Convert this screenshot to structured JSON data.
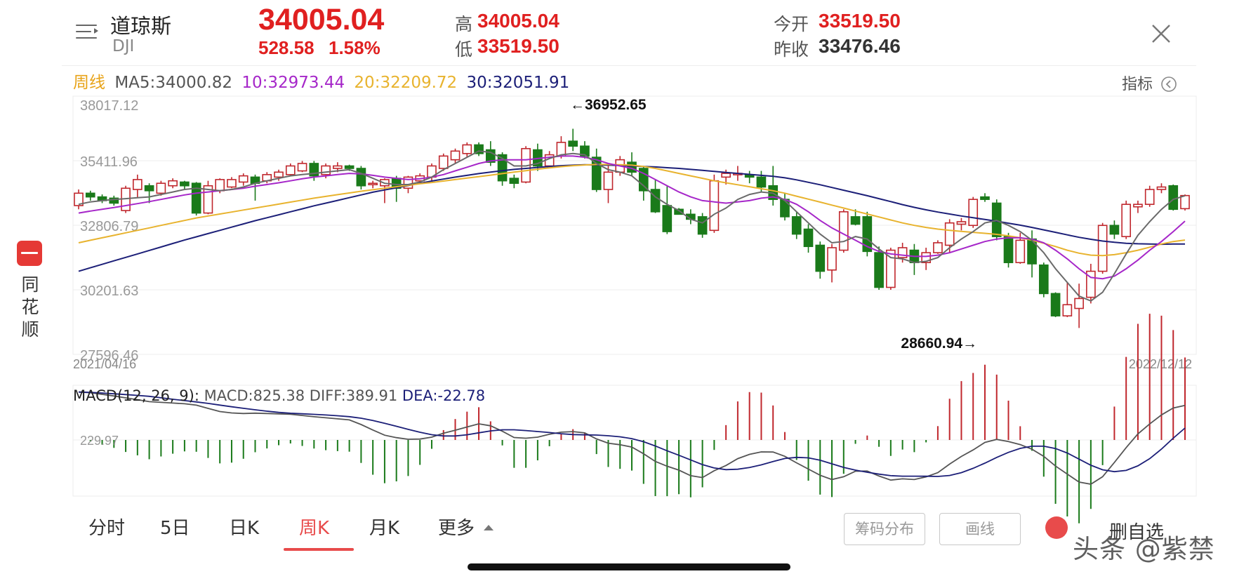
{
  "header": {
    "name": "道琼斯",
    "code": "DJI",
    "price": "34005.04",
    "change": "528.58",
    "change_pct": "1.58%",
    "high_label": "高",
    "high": "34005.04",
    "low_label": "低",
    "low": "33519.50",
    "open_label": "今开",
    "open": "33519.50",
    "prev_label": "昨收",
    "prev": "33476.46"
  },
  "ma_legend": {
    "period": "周线",
    "ma5": "MA5:34000.82",
    "ma10": "10:32973.44",
    "ma20": "20:32209.72",
    "ma30": "30:32051.91",
    "indicator": "指标"
  },
  "side_brand": {
    "l1": "同",
    "l2": "花",
    "l3": "顺"
  },
  "colors": {
    "up": "#c0272d",
    "down": "#1a7a1a",
    "ma5": "#6a6a6a",
    "ma10": "#a627c9",
    "ma20": "#e8b32e",
    "ma30": "#1c1f78",
    "accent": "#e84b4b"
  },
  "tabs": [
    "分时",
    "5日",
    "日K",
    "周K",
    "月K",
    "更多"
  ],
  "active_tab": "周K",
  "buttons": {
    "chip": "筹码分布",
    "draw": "画线",
    "fav": "删自选"
  },
  "watermark": "头条 @紫禁",
  "chart_data": {
    "type": "candlestick",
    "y_ticks": [
      "38017.12",
      "35411.96",
      "32806.79",
      "30201.63",
      "27596.46"
    ],
    "ylim": [
      27596.46,
      38017.12
    ],
    "x_start": "2021/04/16",
    "x_end": "2022/12/12",
    "max_annotation": "←36952.65",
    "min_annotation": "28660.94→",
    "candles": [
      [
        33600,
        34100,
        33450,
        34250
      ],
      [
        34100,
        33950,
        33800,
        34200
      ],
      [
        33950,
        33800,
        33700,
        34050
      ],
      [
        33900,
        33700,
        33600,
        34000
      ],
      [
        33400,
        34300,
        33300,
        34400
      ],
      [
        34250,
        34650,
        33900,
        34850
      ],
      [
        34400,
        34200,
        33700,
        34500
      ],
      [
        34100,
        34500,
        34000,
        34600
      ],
      [
        34400,
        34600,
        34300,
        34700
      ],
      [
        34550,
        34400,
        34250,
        34600
      ],
      [
        34500,
        33300,
        33200,
        34550
      ],
      [
        33300,
        34400,
        33250,
        34600
      ],
      [
        34200,
        34650,
        34100,
        34700
      ],
      [
        34350,
        34650,
        34300,
        34750
      ],
      [
        34550,
        34800,
        34400,
        34900
      ],
      [
        34750,
        34500,
        33800,
        34850
      ],
      [
        34600,
        34850,
        34500,
        34950
      ],
      [
        34750,
        34950,
        34600,
        35050
      ],
      [
        34850,
        35200,
        34800,
        35300
      ],
      [
        35000,
        35300,
        34950,
        35400
      ],
      [
        35300,
        34800,
        34600,
        35400
      ],
      [
        34850,
        35200,
        34700,
        35300
      ],
      [
        35100,
        35200,
        34950,
        35350
      ],
      [
        35200,
        35100,
        35000,
        35250
      ],
      [
        35100,
        34400,
        34250,
        35200
      ],
      [
        34450,
        34500,
        34300,
        34600
      ],
      [
        34400,
        34650,
        33700,
        34700
      ],
      [
        34700,
        34300,
        33750,
        34800
      ],
      [
        34300,
        34750,
        34100,
        34800
      ],
      [
        34600,
        34800,
        34500,
        34900
      ],
      [
        34750,
        35200,
        34600,
        35300
      ],
      [
        35100,
        35600,
        35000,
        35700
      ],
      [
        35450,
        35800,
        35300,
        35900
      ],
      [
        35700,
        36050,
        35550,
        36150
      ],
      [
        36050,
        35700,
        35600,
        36150
      ],
      [
        35850,
        35350,
        35200,
        36200
      ],
      [
        35650,
        34600,
        34400,
        35750
      ],
      [
        34700,
        34500,
        34300,
        34850
      ],
      [
        34550,
        35900,
        34500,
        36000
      ],
      [
        35850,
        35200,
        35000,
        36100
      ],
      [
        35200,
        35650,
        35150,
        35800
      ],
      [
        35600,
        36150,
        35500,
        36400
      ],
      [
        36200,
        36000,
        35800,
        36700
      ],
      [
        36000,
        35600,
        35500,
        36200
      ],
      [
        35550,
        34250,
        34150,
        35900
      ],
      [
        34250,
        34950,
        33700,
        35200
      ],
      [
        34950,
        35450,
        34800,
        35600
      ],
      [
        35350,
        34950,
        34800,
        35750
      ],
      [
        35100,
        34200,
        33800,
        35200
      ],
      [
        34250,
        33350,
        33300,
        34650
      ],
      [
        33600,
        32550,
        32450,
        34400
      ],
      [
        33450,
        33250,
        33250,
        33500
      ],
      [
        33250,
        33050,
        32850,
        33450
      ],
      [
        33150,
        32450,
        32300,
        33300
      ],
      [
        32600,
        34600,
        32500,
        34850
      ],
      [
        34750,
        34900,
        34450,
        35050
      ],
      [
        34900,
        34900,
        34600,
        35200
      ],
      [
        34850,
        34750,
        34500,
        35000
      ],
      [
        34750,
        34350,
        34150,
        35000
      ],
      [
        34400,
        33850,
        33600,
        35200
      ],
      [
        33850,
        33150,
        33000,
        34100
      ],
      [
        33150,
        32450,
        32250,
        33350
      ],
      [
        32650,
        31950,
        31700,
        32850
      ],
      [
        32000,
        30950,
        30650,
        32150
      ],
      [
        31000,
        31900,
        30500,
        32050
      ],
      [
        31800,
        33350,
        31700,
        33450
      ],
      [
        33150,
        32850,
        32800,
        33450
      ],
      [
        33150,
        31750,
        31550,
        33350
      ],
      [
        31700,
        30300,
        30200,
        31950
      ],
      [
        30300,
        31800,
        30200,
        31900
      ],
      [
        31500,
        31900,
        31300,
        32100
      ],
      [
        31800,
        31300,
        30800,
        32050
      ],
      [
        31300,
        31700,
        31000,
        31900
      ],
      [
        31700,
        32100,
        31650,
        32200
      ],
      [
        32000,
        32900,
        31700,
        33050
      ],
      [
        32850,
        32950,
        32600,
        33100
      ],
      [
        32800,
        33850,
        32700,
        33950
      ],
      [
        33950,
        33850,
        33750,
        34100
      ],
      [
        33700,
        32350,
        32200,
        33850
      ],
      [
        32350,
        31300,
        31100,
        32500
      ],
      [
        31300,
        32200,
        31250,
        32500
      ],
      [
        32250,
        31250,
        30700,
        32600
      ],
      [
        31200,
        30050,
        29900,
        31300
      ],
      [
        30050,
        29150,
        29100,
        30100
      ],
      [
        29150,
        29600,
        29100,
        30500
      ],
      [
        29450,
        29850,
        28661,
        30450
      ],
      [
        29900,
        30950,
        29650,
        31250
      ],
      [
        30950,
        32800,
        30850,
        32900
      ],
      [
        32800,
        32450,
        32250,
        33000
      ],
      [
        32350,
        33650,
        32250,
        33800
      ],
      [
        33550,
        33650,
        33300,
        33800
      ],
      [
        33650,
        34250,
        33550,
        34400
      ],
      [
        34250,
        34350,
        34100,
        34500
      ],
      [
        34400,
        33450,
        33400,
        34450
      ],
      [
        33476,
        34005,
        33400,
        34050
      ]
    ],
    "ma5": [
      33650,
      33750,
      33800,
      33850,
      33880,
      33920,
      33950,
      34050,
      34150,
      34250,
      34300,
      34250,
      34200,
      34250,
      34350,
      34500,
      34600,
      34700,
      34800,
      34850,
      34900,
      34950,
      35000,
      35050,
      34900,
      34700,
      34500,
      34450,
      34450,
      34550,
      34750,
      35050,
      35300,
      35550,
      35800,
      35750,
      35500,
      35200,
      35200,
      35300,
      35500,
      35650,
      35700,
      35650,
      35300,
      35050,
      34950,
      34800,
      34400,
      33950,
      33650,
      33400,
      33050,
      32900,
      33250,
      33500,
      33850,
      34050,
      34150,
      34100,
      33800,
      33350,
      32900,
      32450,
      32100,
      32150,
      32350,
      32250,
      31850,
      31500,
      31450,
      31300,
      31350,
      31500,
      31900,
      32250,
      32550,
      32900,
      33000,
      32800,
      32550,
      32200,
      31700,
      31050,
      30500,
      29950,
      29750,
      30100,
      30850,
      31650,
      32400,
      32950,
      33450,
      33850,
      34000
    ],
    "ma10": [
      33300,
      33380,
      33450,
      33520,
      33600,
      33680,
      33760,
      33850,
      33940,
      34030,
      34100,
      34150,
      34200,
      34250,
      34300,
      34380,
      34450,
      34520,
      34600,
      34680,
      34750,
      34800,
      34850,
      34900,
      34880,
      34820,
      34750,
      34700,
      34650,
      34680,
      34750,
      34850,
      35000,
      35150,
      35300,
      35400,
      35450,
      35450,
      35450,
      35500,
      35550,
      35600,
      35600,
      35550,
      35450,
      35300,
      35200,
      35100,
      34900,
      34650,
      34400,
      34150,
      33950,
      33800,
      33750,
      33700,
      33750,
      33800,
      33900,
      33950,
      33850,
      33650,
      33350,
      33000,
      32700,
      32450,
      32200,
      31950,
      31750,
      31650,
      31600,
      31550,
      31550,
      31600,
      31700,
      31850,
      32000,
      32150,
      32250,
      32300,
      32300,
      32250,
      32100,
      31800,
      31450,
      31050,
      30700,
      30650,
      30750,
      31050,
      31400,
      31800,
      32150,
      32550,
      32973
    ],
    "ma20": [
      32100,
      32200,
      32300,
      32400,
      32500,
      32600,
      32700,
      32800,
      32900,
      33000,
      33100,
      33180,
      33260,
      33340,
      33420,
      33500,
      33580,
      33660,
      33740,
      33820,
      33900,
      33970,
      34040,
      34110,
      34180,
      34240,
      34300,
      34360,
      34420,
      34480,
      34530,
      34590,
      34650,
      34710,
      34770,
      34830,
      34890,
      34950,
      35010,
      35070,
      35120,
      35170,
      35210,
      35240,
      35260,
      35260,
      35250,
      35230,
      35180,
      35100,
      35000,
      34900,
      34800,
      34700,
      34600,
      34520,
      34440,
      34360,
      34280,
      34200,
      34100,
      33980,
      33860,
      33740,
      33620,
      33500,
      33380,
      33260,
      33140,
      33020,
      32900,
      32800,
      32720,
      32650,
      32600,
      32560,
      32520,
      32480,
      32440,
      32380,
      32300,
      32200,
      32080,
      31950,
      31800,
      31680,
      31600,
      31580,
      31620,
      31700,
      31800,
      31920,
      32050,
      32150,
      32209
    ],
    "ma30": [
      30950,
      31090,
      31230,
      31370,
      31510,
      31650,
      31790,
      31930,
      32070,
      32210,
      32340,
      32470,
      32600,
      32730,
      32860,
      32990,
      33110,
      33230,
      33350,
      33470,
      33590,
      33700,
      33810,
      33920,
      34030,
      34140,
      34230,
      34320,
      34410,
      34500,
      34590,
      34670,
      34750,
      34820,
      34890,
      34950,
      35010,
      35060,
      35100,
      35140,
      35180,
      35210,
      35230,
      35250,
      35240,
      35230,
      35220,
      35200,
      35180,
      35160,
      35130,
      35100,
      35060,
      35020,
      34980,
      34940,
      34900,
      34860,
      34820,
      34780,
      34720,
      34640,
      34540,
      34440,
      34330,
      34220,
      34110,
      34000,
      33880,
      33760,
      33640,
      33530,
      33430,
      33340,
      33260,
      33180,
      33110,
      33040,
      32970,
      32890,
      32810,
      32720,
      32620,
      32520,
      32420,
      32320,
      32240,
      32170,
      32120,
      32080,
      32060,
      32050,
      32040,
      32050,
      32051
    ]
  },
  "macd": {
    "label": "MACD(12, 26, 9):",
    "macd": "MACD:825.38",
    "diff": "DIFF:389.91",
    "dea": "DEA:-22.78",
    "zero_label": "229.97"
  }
}
